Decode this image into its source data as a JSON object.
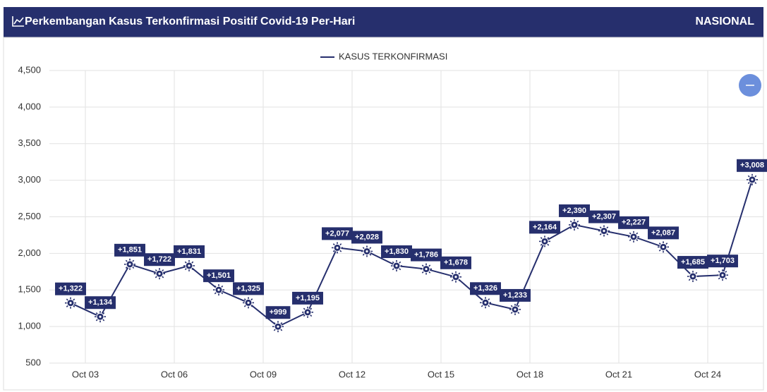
{
  "header": {
    "title": "Perkembangan Kasus Terkonfirmasi Positif Covid-19 Per-Hari",
    "region": "NASIONAL"
  },
  "chart_data": {
    "type": "line",
    "categories": [
      null,
      "Oct 03",
      null,
      null,
      "Oct 06",
      null,
      null,
      "Oct 09",
      null,
      null,
      "Oct 12",
      null,
      null,
      "Oct 15",
      null,
      null,
      "Oct 18",
      null,
      null,
      "Oct 21",
      null,
      null,
      "Oct 24",
      null
    ],
    "series": [
      {
        "name": "KASUS TERKONFIRMASI",
        "color": "#262f6d",
        "values": [
          1322,
          1134,
          1851,
          1722,
          1831,
          1501,
          1325,
          999,
          1195,
          2077,
          2028,
          1830,
          1786,
          1678,
          1326,
          1233,
          2164,
          2390,
          2307,
          2227,
          2087,
          1685,
          1703,
          3008
        ],
        "value_labels": [
          "+1,322",
          "+1,134",
          "+1,851",
          "+1,722",
          "+1,831",
          "+1,501",
          "+1,325",
          "+999",
          "+1,195",
          "+2,077",
          "+2,028",
          "+1,830",
          "+1,786",
          "+1,678",
          "+1,326",
          "+1,233",
          "+2,164",
          "+2,390",
          "+2,307",
          "+2,227",
          "+2,087",
          "+1,685",
          "+1,703",
          "+3,008"
        ]
      }
    ],
    "ylim": [
      500,
      4500
    ],
    "yticks": [
      500,
      {
        "value": 1000,
        "label": "1,000"
      },
      {
        "value": 1500,
        "label": "1,500"
      },
      {
        "value": 2000,
        "label": "2,000"
      },
      {
        "value": 2500,
        "label": "2,500"
      },
      {
        "value": 3000,
        "label": "3,000"
      },
      {
        "value": 3500,
        "label": "3,500"
      },
      {
        "value": 4000,
        "label": "4,000"
      },
      {
        "value": 4500,
        "label": "4,500"
      }
    ],
    "grid": true,
    "legend": "top"
  }
}
